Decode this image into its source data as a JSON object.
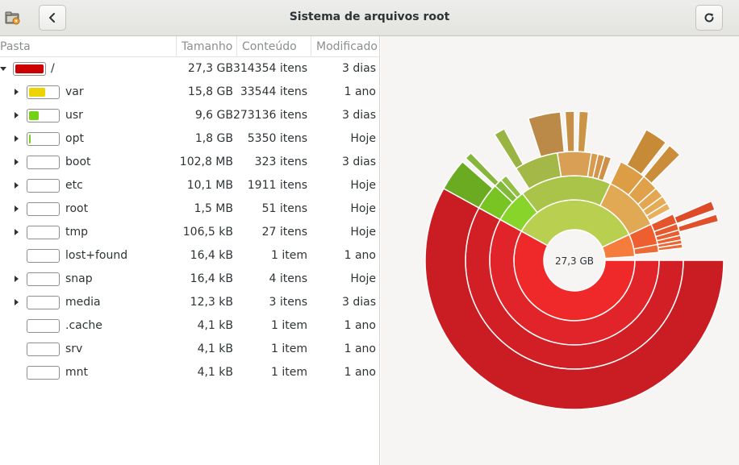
{
  "header": {
    "title": "Sistema de arquivos root",
    "icons": {
      "app": "folder-disk-icon",
      "back": "chevron-left-icon",
      "refresh": "refresh-icon"
    }
  },
  "columns": {
    "folder": "Pasta",
    "size": "Tamanho",
    "content": "Conteúdo",
    "modified": "Modificado"
  },
  "rows": [
    {
      "name": "/",
      "size": "27,3 GB",
      "content": "314354 itens",
      "modified": "3 dias",
      "expanded": true,
      "expandable": true,
      "fraction": 1.0,
      "color": "#cc0000",
      "level": 0
    },
    {
      "name": "var",
      "size": "15,8 GB",
      "content": "33544 itens",
      "modified": "1 ano",
      "expandable": true,
      "fraction": 0.58,
      "color": "#edd400",
      "level": 1
    },
    {
      "name": "usr",
      "size": "9,6 GB",
      "content": "273136 itens",
      "modified": "3 dias",
      "expandable": true,
      "fraction": 0.35,
      "color": "#73d216",
      "level": 1
    },
    {
      "name": "opt",
      "size": "1,8 GB",
      "content": "5350 itens",
      "modified": "Hoje",
      "expandable": true,
      "fraction": 0.066,
      "color": "#73d216",
      "level": 1
    },
    {
      "name": "boot",
      "size": "102,8 MB",
      "content": "323 itens",
      "modified": "3 dias",
      "expandable": true,
      "fraction": 0.0,
      "color": "#73d216",
      "level": 1
    },
    {
      "name": "etc",
      "size": "10,1 MB",
      "content": "1911 itens",
      "modified": "Hoje",
      "expandable": true,
      "fraction": 0.0,
      "color": "#73d216",
      "level": 1
    },
    {
      "name": "root",
      "size": "1,5 MB",
      "content": "51 itens",
      "modified": "Hoje",
      "expandable": true,
      "fraction": 0.0,
      "color": "#73d216",
      "level": 1
    },
    {
      "name": "tmp",
      "size": "106,5 kB",
      "content": "27 itens",
      "modified": "Hoje",
      "expandable": true,
      "fraction": 0.0,
      "color": "#73d216",
      "level": 1
    },
    {
      "name": "lost+found",
      "size": "16,4 kB",
      "content": "1 item",
      "modified": "1 ano",
      "expandable": false,
      "fraction": 0.0,
      "color": "#73d216",
      "level": 1
    },
    {
      "name": "snap",
      "size": "16,4 kB",
      "content": "4 itens",
      "modified": "Hoje",
      "expandable": true,
      "fraction": 0.0,
      "color": "#73d216",
      "level": 1
    },
    {
      "name": "media",
      "size": "12,3 kB",
      "content": "3 itens",
      "modified": "3 dias",
      "expandable": true,
      "fraction": 0.0,
      "color": "#73d216",
      "level": 1
    },
    {
      "name": ".cache",
      "size": "4,1 kB",
      "content": "1 item",
      "modified": "1 ano",
      "expandable": false,
      "fraction": 0.0,
      "color": "#73d216",
      "level": 1
    },
    {
      "name": "srv",
      "size": "4,1 kB",
      "content": "1 item",
      "modified": "1 ano",
      "expandable": false,
      "fraction": 0.0,
      "color": "#73d216",
      "level": 1
    },
    {
      "name": "mnt",
      "size": "4,1 kB",
      "content": "1 item",
      "modified": "1 ano",
      "expandable": false,
      "fraction": 0.0,
      "color": "#73d216",
      "level": 1
    }
  ],
  "chart_data": {
    "type": "sunburst",
    "center_label": "27,3 GB",
    "segments": [
      {
        "ring": 0,
        "start": 0,
        "end": 0.58,
        "color": "#ef2929"
      },
      {
        "ring": 0,
        "start": 0.58,
        "end": 0.93,
        "color": "#b8cf50"
      },
      {
        "ring": 0,
        "start": 0.93,
        "end": 0.99,
        "color": "#f57c3c"
      },
      {
        "ring": 1,
        "start": 0,
        "end": 0.58,
        "color": "#e0242a"
      },
      {
        "ring": 1,
        "start": 0.58,
        "end": 0.645,
        "color": "#88d42b"
      },
      {
        "ring": 1,
        "start": 0.645,
        "end": 0.82,
        "color": "#a9c449"
      },
      {
        "ring": 1,
        "start": 0.82,
        "end": 0.93,
        "color": "#e2a955"
      },
      {
        "ring": 1,
        "start": 0.93,
        "end": 0.97,
        "color": "#ef5e2f"
      },
      {
        "ring": 1,
        "start": 0.97,
        "end": 0.985,
        "color": "#ee6a35"
      },
      {
        "ring": 2,
        "start": 0,
        "end": 0.58,
        "color": "#d21f26"
      },
      {
        "ring": 2,
        "start": 0.58,
        "end": 0.62,
        "color": "#77c423"
      },
      {
        "ring": 2,
        "start": 0.62,
        "end": 0.632,
        "color": "#81ba3a"
      },
      {
        "ring": 2,
        "start": 0.632,
        "end": 0.642,
        "color": "#93be44"
      },
      {
        "ring": 2,
        "start": 0.66,
        "end": 0.725,
        "color": "#a3b847"
      },
      {
        "ring": 2,
        "start": 0.725,
        "end": 0.775,
        "color": "#d9a055"
      },
      {
        "ring": 2,
        "start": 0.775,
        "end": 0.785,
        "color": "#d89a4c"
      },
      {
        "ring": 2,
        "start": 0.785,
        "end": 0.795,
        "color": "#d4954a"
      },
      {
        "ring": 2,
        "start": 0.795,
        "end": 0.805,
        "color": "#d08f48"
      },
      {
        "ring": 2,
        "start": 0.82,
        "end": 0.86,
        "color": "#dd9d45"
      },
      {
        "ring": 2,
        "start": 0.86,
        "end": 0.885,
        "color": "#e1a04a"
      },
      {
        "ring": 2,
        "start": 0.885,
        "end": 0.9,
        "color": "#e4a650"
      },
      {
        "ring": 2,
        "start": 0.9,
        "end": 0.912,
        "color": "#e6ab55"
      },
      {
        "ring": 2,
        "start": 0.912,
        "end": 0.922,
        "color": "#e8b05c"
      },
      {
        "ring": 2,
        "start": 0.93,
        "end": 0.945,
        "color": "#e4552b"
      },
      {
        "ring": 2,
        "start": 0.945,
        "end": 0.955,
        "color": "#e6592d"
      },
      {
        "ring": 2,
        "start": 0.955,
        "end": 0.963,
        "color": "#e85e2f"
      },
      {
        "ring": 2,
        "start": 0.963,
        "end": 0.97,
        "color": "#ea6231"
      },
      {
        "ring": 2,
        "start": 0.97,
        "end": 0.976,
        "color": "#ec6633"
      },
      {
        "ring": 2,
        "start": 0.976,
        "end": 0.982,
        "color": "#ee6a35"
      },
      {
        "ring": 3,
        "start": 0,
        "end": 0.58,
        "color": "#c91d23"
      },
      {
        "ring": 3,
        "start": 0.58,
        "end": 0.615,
        "color": "#6aab22"
      },
      {
        "ring": 3,
        "start": 0.62,
        "end": 0.628,
        "color": "#86b63c"
      },
      {
        "ring": 3,
        "start": 0.66,
        "end": 0.672,
        "color": "#9ab443"
      },
      {
        "ring": 3,
        "start": 0.7,
        "end": 0.735,
        "color": "#bc8a48"
      },
      {
        "ring": 3,
        "start": 0.74,
        "end": 0.75,
        "color": "#c79047"
      },
      {
        "ring": 3,
        "start": 0.755,
        "end": 0.765,
        "color": "#cc9447"
      },
      {
        "ring": 3,
        "start": 0.83,
        "end": 0.855,
        "color": "#c78a36"
      },
      {
        "ring": 3,
        "start": 0.86,
        "end": 0.875,
        "color": "#cb8d39"
      },
      {
        "ring": 3,
        "start": 0.935,
        "end": 0.945,
        "color": "#de4b29"
      },
      {
        "ring": 3,
        "start": 0.95,
        "end": 0.958,
        "color": "#e2502b"
      }
    ]
  }
}
